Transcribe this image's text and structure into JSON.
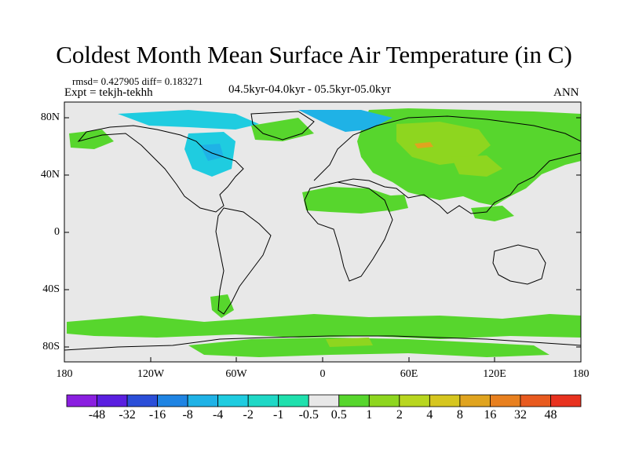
{
  "title": "Coldest Month Mean Surface Air Temperature (in C)",
  "stats": "rmsd= 0.427905 diff= 0.183271",
  "expt": "Expt = tekjh-tekhh",
  "period": "04.5kyr-04.0kyr - 05.5kyr-05.0kyr",
  "season": "ANN",
  "y_axis_labels": [
    "80N",
    "40N",
    "0",
    "40S",
    "80S"
  ],
  "x_axis_labels": [
    "180",
    "120W",
    "60W",
    "0",
    "60E",
    "120E",
    "180"
  ],
  "colorbar": {
    "colors": [
      "#8a1fe0",
      "#5a1fe0",
      "#2b4ed8",
      "#1f84e3",
      "#1fb2e6",
      "#1fcce0",
      "#1fd8c6",
      "#1fe0ad",
      "#e8e8e8",
      "#57d62d",
      "#8ed61f",
      "#b8d61f",
      "#d6c61f",
      "#e0a41f",
      "#e8801f",
      "#e85a1f",
      "#e8321f"
    ],
    "labels": [
      "-48",
      "-32",
      "-16",
      "-8",
      "-4",
      "-2",
      "-1",
      "-0.5",
      "0.5",
      "1",
      "2",
      "4",
      "8",
      "16",
      "32",
      "48"
    ]
  },
  "map_colors": {
    "background": "#e8e8e8",
    "green": "#57d62d",
    "lightgreen": "#8ed61f",
    "cyan": "#1fcce0",
    "blue": "#1fb2e6",
    "orange": "#e0a41f",
    "coast": "#000000"
  }
}
